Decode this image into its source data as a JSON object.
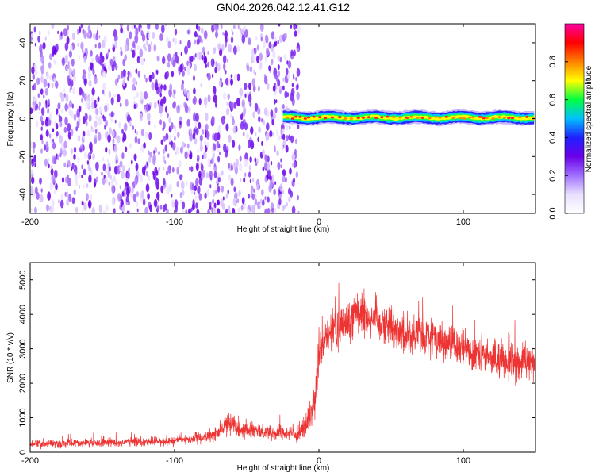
{
  "title": "GN04.2026.042.12.41.G12",
  "colors": {
    "snr_line": "#ee3333",
    "scatter_purple": "#6a00e8",
    "axis": "#000000"
  },
  "chart_data": [
    {
      "type": "heatmap",
      "title": "GN04.2026.042.12.41.G12",
      "xlabel": "Height of straight line (km)",
      "ylabel": "Frequency (Hz)",
      "xlim": [
        -200,
        150
      ],
      "ylim": [
        -50,
        50
      ],
      "xticks": [
        -200,
        -100,
        0,
        100
      ],
      "xtick_labels": [
        "-200",
        "-100",
        "0",
        "100"
      ],
      "yticks": [
        -40,
        -20,
        0,
        20,
        40
      ],
      "ytick_labels": [
        "-40",
        "-20",
        "0",
        "20",
        "40"
      ],
      "noise_region_x": [
        -200,
        -20
      ],
      "signal_band": {
        "x_range": [
          -25,
          150
        ],
        "frequency_hz": 0.5,
        "half_width_hz": 3
      },
      "colorbar": {
        "label": "Normalized spectral amplitude",
        "range": [
          0,
          1
        ],
        "ticks": [
          0.0,
          0.2,
          0.4,
          0.6,
          0.8
        ],
        "tick_labels": [
          "0.0",
          "0.2",
          "0.4",
          "0.6",
          "0.8"
        ],
        "colormap": [
          "#ffffff",
          "#e8e0ff",
          "#a070ff",
          "#6a00e8",
          "#2020ff",
          "#00c0ff",
          "#00ff40",
          "#ffff00",
          "#ff8000",
          "#ff0000",
          "#ff00a0"
        ]
      },
      "legend": "none",
      "grid": false
    },
    {
      "type": "line",
      "xlabel": "Height of straight line (km)",
      "ylabel": "SNR (10 * v/v)",
      "xlim": [
        -200,
        150
      ],
      "ylim": [
        0,
        5500
      ],
      "xticks": [
        -200,
        -100,
        0,
        100
      ],
      "xtick_labels": [
        "-200",
        "-100",
        "0",
        "100"
      ],
      "yticks": [
        0,
        1000,
        2000,
        3000,
        4000,
        5000
      ],
      "ytick_labels": [
        "0",
        "1000",
        "2000",
        "3000",
        "4000",
        "5000"
      ],
      "envelope": {
        "x": [
          -200,
          -150,
          -100,
          -80,
          -70,
          -62,
          -55,
          -40,
          -25,
          -15,
          -10,
          -5,
          -2,
          0,
          5,
          10,
          20,
          25,
          30,
          40,
          50,
          60,
          70,
          80,
          90,
          100,
          110,
          120,
          130,
          140,
          150
        ],
        "mean": [
          250,
          270,
          330,
          420,
          550,
          900,
          650,
          600,
          600,
          500,
          700,
          1100,
          1800,
          2800,
          3300,
          3500,
          3800,
          4200,
          4000,
          3900,
          3700,
          3400,
          3400,
          3300,
          3100,
          3000,
          2900,
          2700,
          2600,
          2600,
          2700
        ],
        "amp": [
          120,
          120,
          130,
          150,
          200,
          300,
          220,
          200,
          200,
          180,
          300,
          400,
          500,
          600,
          600,
          600,
          650,
          700,
          650,
          600,
          550,
          550,
          550,
          500,
          500,
          500,
          500,
          500,
          500,
          500,
          500
        ]
      },
      "legend": "none",
      "grid": false
    }
  ]
}
